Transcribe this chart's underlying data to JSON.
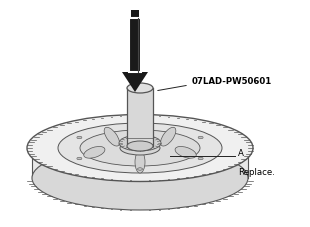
{
  "bg_color": "#ffffff",
  "label_tool": "07LAD-PW50601",
  "label_a": "A",
  "label_replace": "Replace.",
  "arrow_color": "#1a1a1a",
  "edge_color": "#555555",
  "fill_light": "#f0f0f0",
  "fill_mid": "#e0e0e0",
  "fill_dark": "#cccccc",
  "figsize": [
    3.1,
    2.27
  ],
  "dpi": 100
}
